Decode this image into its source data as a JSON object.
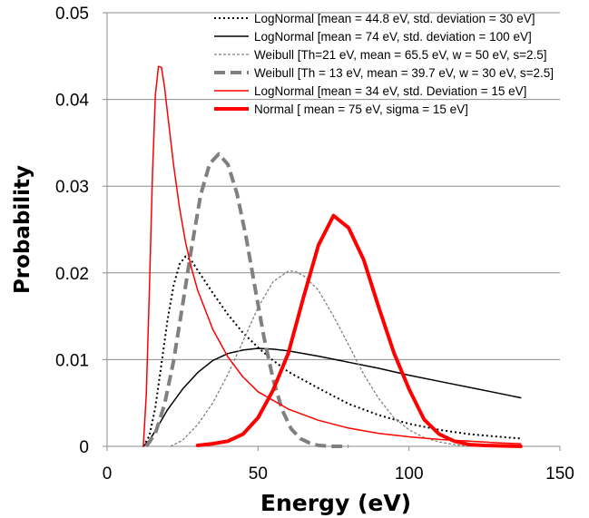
{
  "chart_data": {
    "type": "line",
    "xlabel": "Energy (eV)",
    "ylabel": "Probability",
    "xlim": [
      0,
      150
    ],
    "ylim": [
      0,
      0.05
    ],
    "x_ticks": [
      0,
      50,
      100,
      150
    ],
    "x_tick_labels": [
      "0",
      "50",
      "100",
      "150"
    ],
    "y_ticks": [
      0,
      0.01,
      0.02,
      0.03,
      0.04,
      0.05
    ],
    "y_tick_labels": [
      "0",
      "0.01",
      "0.02",
      "0.03",
      "0.04",
      "0.05"
    ],
    "grid": "horizontal",
    "legend_position": "top-right",
    "series": [
      {
        "name": "LogNormal [mean = 44.8 eV, std. deviation = 30 eV]",
        "color": "#000000",
        "style": "dotted",
        "x": [
          12,
          14,
          16,
          18,
          20,
          22,
          24,
          26,
          28,
          30,
          35,
          40,
          45,
          50,
          55,
          60,
          70,
          80,
          90,
          100,
          110,
          120,
          130,
          137
        ],
        "y": [
          0,
          0.0012,
          0.0045,
          0.0095,
          0.0145,
          0.0185,
          0.021,
          0.0219,
          0.0214,
          0.0203,
          0.0177,
          0.0152,
          0.0131,
          0.0114,
          0.0099,
          0.0086,
          0.0067,
          0.0049,
          0.0036,
          0.0026,
          0.0019,
          0.0014,
          0.0011,
          0.0009
        ]
      },
      {
        "name": "LogNormal [mean = 74 eV, std. deviation = 100 eV]",
        "color": "#000000",
        "style": "solid",
        "x": [
          12,
          14,
          16,
          18,
          20,
          25,
          30,
          35,
          40,
          45,
          50,
          55,
          60,
          70,
          80,
          90,
          100,
          110,
          120,
          130,
          137
        ],
        "y": [
          0,
          0.0007,
          0.0018,
          0.003,
          0.0042,
          0.0066,
          0.0085,
          0.0099,
          0.0107,
          0.0111,
          0.0113,
          0.0112,
          0.011,
          0.0104,
          0.0097,
          0.009,
          0.0082,
          0.0075,
          0.0068,
          0.0061,
          0.0056
        ]
      },
      {
        "name": "Weibull [Th=21 eV, mean = 65.5 eV, w = 50 eV, s=2.5]",
        "color": "#808080",
        "style": "fine-dash",
        "x": [
          21,
          25,
          30,
          35,
          40,
          45,
          50,
          55,
          60,
          62,
          65,
          70,
          75,
          80,
          85,
          90,
          95,
          100,
          105,
          110,
          115,
          120
        ],
        "y": [
          0,
          0.0007,
          0.0025,
          0.005,
          0.0083,
          0.0121,
          0.016,
          0.019,
          0.0202,
          0.0202,
          0.0197,
          0.018,
          0.015,
          0.0117,
          0.0083,
          0.0055,
          0.0033,
          0.0019,
          0.001,
          0.0005,
          0.0002,
          0
        ]
      },
      {
        "name": "Weibull [Th = 13 eV, mean = 39.7 eV, w = 30 eV, s=2.5]",
        "color": "#808080",
        "style": "bold-dash",
        "x": [
          13,
          16,
          19,
          22,
          25,
          28,
          31,
          34,
          37,
          40,
          43,
          46,
          49,
          52,
          55,
          58,
          61,
          64,
          67,
          70,
          75,
          80
        ],
        "y": [
          0,
          0.0015,
          0.0048,
          0.0098,
          0.0163,
          0.0229,
          0.029,
          0.0326,
          0.0337,
          0.0325,
          0.0292,
          0.0242,
          0.0183,
          0.0125,
          0.0077,
          0.0042,
          0.002,
          0.0009,
          0.0004,
          0.0001,
          0,
          0
        ]
      },
      {
        "name": "LogNormal [mean = 34 eV, std. Deviation  = 15 eV]",
        "color": "#ff0000",
        "style": "solid",
        "x": [
          12,
          13,
          14,
          15,
          16,
          17,
          18,
          19,
          20,
          22,
          24,
          26,
          28,
          30,
          35,
          40,
          45,
          50,
          60,
          70,
          80,
          90,
          100,
          110,
          120,
          130,
          137
        ],
        "y": [
          0,
          0.006,
          0.018,
          0.031,
          0.0405,
          0.0438,
          0.0437,
          0.0415,
          0.0385,
          0.0325,
          0.0275,
          0.0235,
          0.0205,
          0.018,
          0.0135,
          0.0103,
          0.008,
          0.0063,
          0.0043,
          0.003,
          0.0021,
          0.0015,
          0.0011,
          0.0008,
          0.0006,
          0.0004,
          0.0003
        ]
      },
      {
        "name": "Normal [ mean = 75 eV, sigma = 15 eV]",
        "color": "#ff0000",
        "style": "bold",
        "x": [
          30,
          35,
          40,
          45,
          50,
          55,
          60,
          65,
          70,
          75,
          80,
          85,
          90,
          95,
          100,
          105,
          110,
          115,
          120,
          125,
          137
        ],
        "y": [
          0.0001,
          0.0003,
          0.0006,
          0.0014,
          0.0033,
          0.0065,
          0.0107,
          0.0171,
          0.0232,
          0.0266,
          0.0252,
          0.0215,
          0.016,
          0.0108,
          0.0066,
          0.0031,
          0.0014,
          0.0006,
          0.0002,
          0.0001,
          0
        ]
      }
    ]
  }
}
